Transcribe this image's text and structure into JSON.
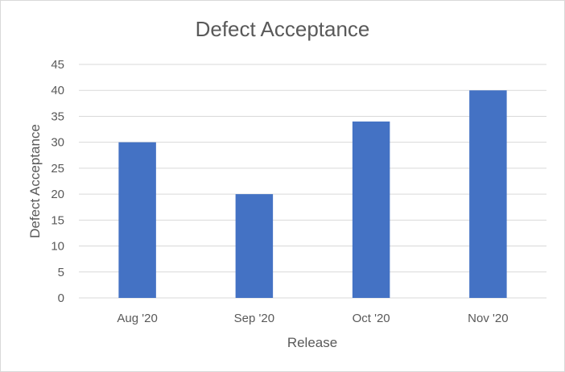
{
  "chart_data": {
    "type": "bar",
    "title": "Defect Acceptance",
    "xlabel": "Release",
    "ylabel": "Defect Acceptance",
    "categories": [
      "Aug '20",
      "Sep '20",
      "Oct '20",
      "Nov '20"
    ],
    "values": [
      30,
      20,
      34,
      40
    ],
    "ylim": [
      0,
      45
    ],
    "yticks": [
      0,
      5,
      10,
      15,
      20,
      25,
      30,
      35,
      40,
      45
    ],
    "grid": true,
    "legend": "none",
    "bar_color": "#4472c4",
    "grid_color": "#d9d9d9",
    "text_color": "#595959"
  }
}
